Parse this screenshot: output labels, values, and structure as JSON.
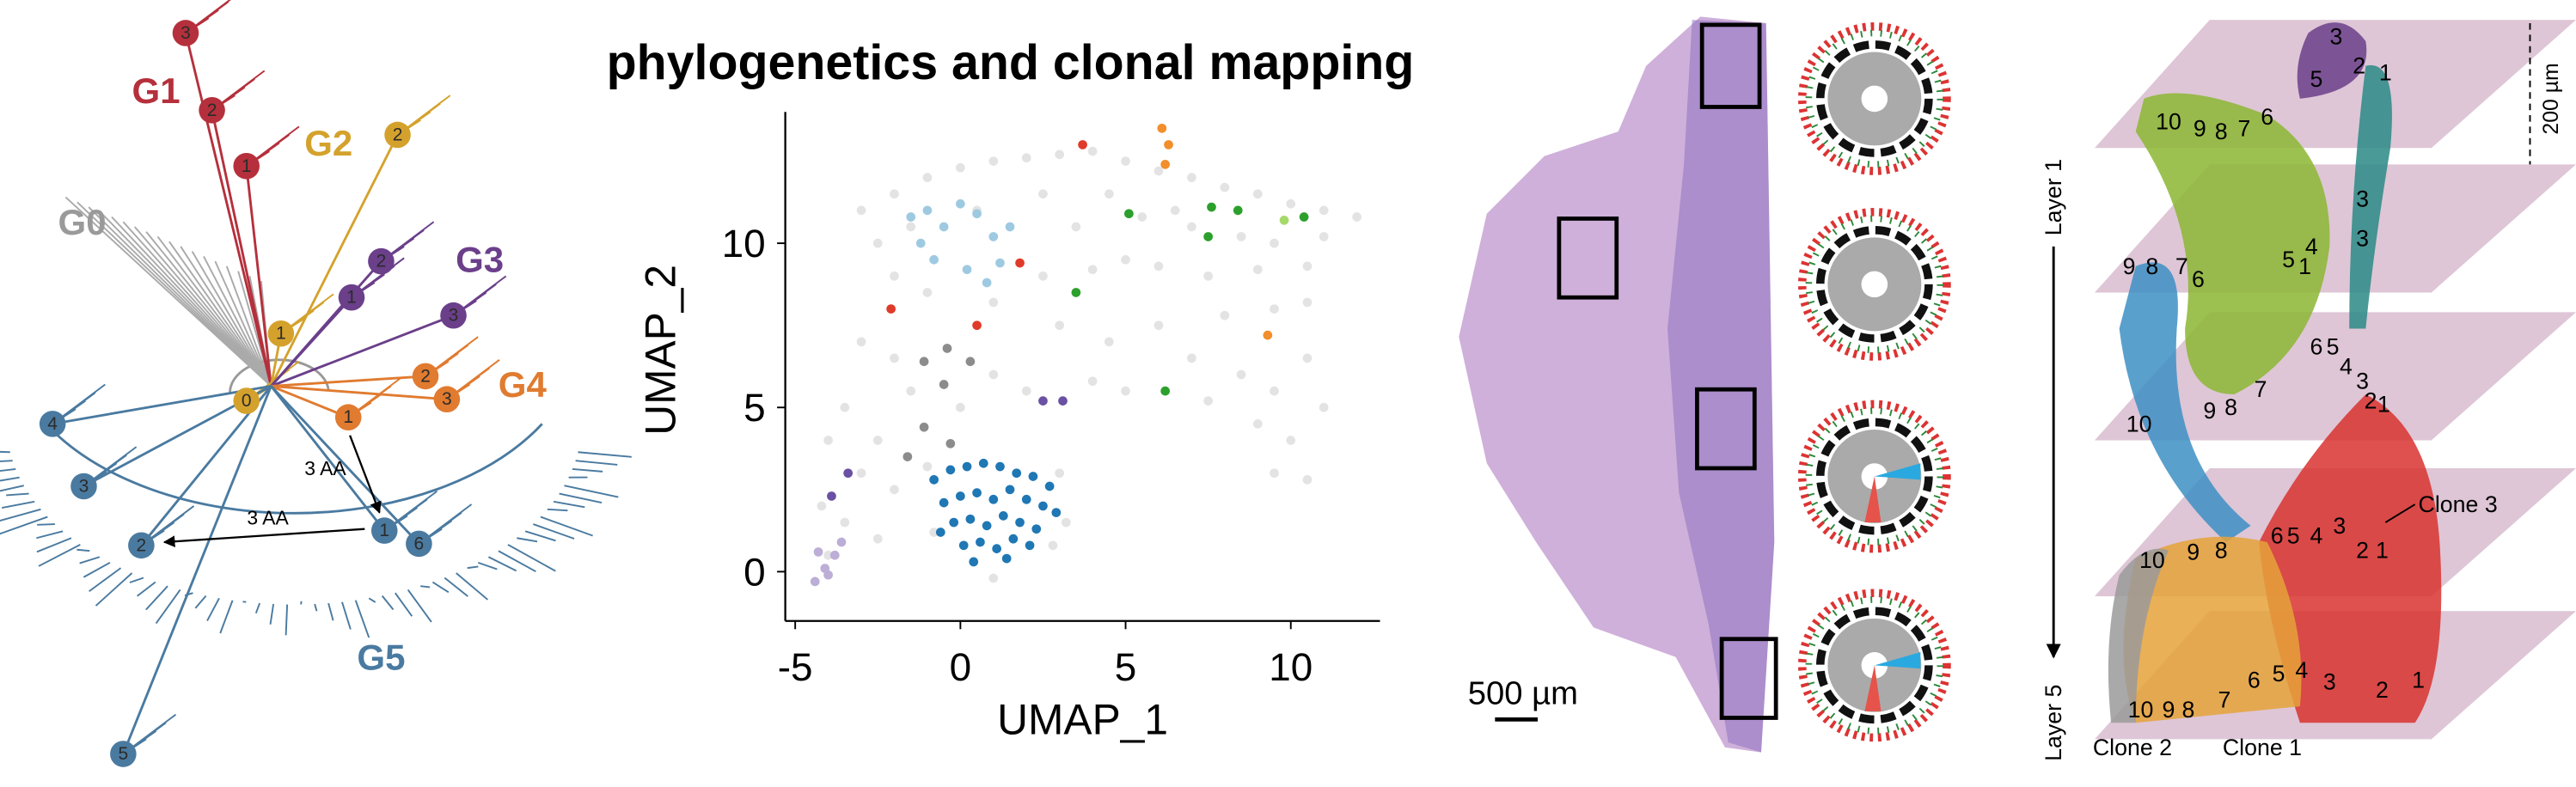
{
  "title": "phylogenetics and clonal mapping",
  "tree": {
    "groups": [
      "G0",
      "G1",
      "G2",
      "G3",
      "G4",
      "G5"
    ],
    "nodes": [
      "3",
      "2",
      "1",
      "2",
      "1",
      "0",
      "2",
      "1",
      "3",
      "2",
      "3",
      "1",
      "4",
      "3",
      "2",
      "1",
      "6",
      "5"
    ],
    "annotations": [
      "3 AA",
      "3 AA"
    ]
  },
  "chart_data": {
    "type": "scatter",
    "xlabel": "UMAP_1",
    "ylabel": "UMAP_2",
    "xlim": [
      -5.3,
      12.7
    ],
    "ylim": [
      -1.5,
      14
    ],
    "xticks": [
      -5,
      0,
      5,
      10
    ],
    "yticks": [
      0,
      5,
      10
    ],
    "series": [
      {
        "color": "#e3e3e3",
        "x": [
          -3,
          -2,
          -1,
          0,
          1,
          2,
          3,
          4,
          5,
          6,
          7,
          8,
          9,
          10,
          11,
          12,
          -2.5,
          -1.5,
          0.5,
          2.5,
          3.5,
          4.5,
          5.5,
          6.5,
          7,
          8.5,
          9.5,
          11,
          -2,
          -1,
          1,
          2.5,
          4,
          5,
          6,
          7.5,
          9,
          10.5,
          3,
          4.5,
          6,
          7,
          8,
          9.5,
          10.5,
          8.5,
          9.5,
          10.5,
          9,
          10,
          9.5,
          10.5,
          11,
          5,
          4,
          7.5,
          -3,
          -2,
          -1.5,
          -3.5,
          -4,
          -2.5,
          -3,
          -4.2,
          -3.5,
          -2.5,
          -4,
          0,
          1,
          2,
          -1,
          3,
          3.2,
          -0.8,
          2.8,
          1,
          -2
        ],
        "values": [
          11,
          11.5,
          12,
          12.3,
          12.5,
          12.6,
          12.7,
          12.8,
          12.5,
          12.2,
          12,
          11.7,
          11.5,
          11.2,
          11,
          10.8,
          10,
          10.5,
          11,
          11.5,
          10.5,
          11.5,
          10.8,
          11,
          10.5,
          10.2,
          10,
          10.2,
          9,
          8.5,
          8.2,
          9,
          9.2,
          9.5,
          9.3,
          9,
          9.2,
          9.3,
          7.5,
          7,
          7.5,
          6.5,
          7.8,
          8,
          8.2,
          6,
          5.5,
          6.5,
          4.5,
          4,
          3,
          2.8,
          5,
          5.5,
          5.8,
          5.2,
          7,
          6.5,
          5.5,
          5,
          4,
          4,
          3,
          2,
          1.5,
          1,
          0.5,
          5,
          6,
          5.5,
          3.2,
          3,
          1.5,
          1.2,
          0.8,
          -0.2,
          2.5
        ]
      },
      {
        "color": "#8c8c8c",
        "x": [
          -0.4,
          -1.1,
          -0.5,
          -1.1,
          -0.3,
          0.3,
          -1.6
        ],
        "values": [
          6.8,
          6.4,
          5.7,
          4.4,
          3.9,
          6.4,
          3.5
        ]
      },
      {
        "color": "#bcaed6",
        "x": [
          -4.4,
          -4.1,
          -3.8,
          -4.3,
          -3.6,
          -4.0
        ],
        "values": [
          -0.3,
          0.1,
          0.5,
          0.6,
          0.9,
          -0.1
        ]
      },
      {
        "color": "#9ecae1",
        "x": [
          -1.5,
          -1,
          -0.5,
          0,
          0.5,
          1,
          1.5,
          -0.8,
          0.2,
          1.2,
          -1.2,
          0.8
        ],
        "values": [
          10.8,
          11,
          10.5,
          11.2,
          10.9,
          10.2,
          10.5,
          9.5,
          9.2,
          9.4,
          10,
          8.8
        ]
      },
      {
        "color": "#1f77b4",
        "x": [
          -0.8,
          -0.3,
          0.2,
          0.7,
          1.2,
          1.7,
          2.2,
          2.7,
          -0.5,
          0,
          0.5,
          1,
          1.5,
          2,
          2.5,
          -0.2,
          0.3,
          0.8,
          1.3,
          1.8,
          2.3,
          0.1,
          0.6,
          1.1,
          1.6,
          2.1,
          -0.6,
          2.9,
          0.4,
          1.4
        ],
        "values": [
          2.8,
          3.1,
          3.2,
          3.3,
          3.2,
          3.0,
          2.9,
          2.6,
          2.1,
          2.3,
          2.4,
          2.2,
          2.5,
          2.2,
          2.0,
          1.5,
          1.6,
          1.4,
          1.7,
          1.5,
          1.3,
          0.8,
          0.9,
          0.7,
          1.0,
          0.8,
          1.2,
          1.8,
          0.3,
          0.4
        ]
      },
      {
        "color": "#e03b2a",
        "x": [
          1.8,
          -2.1,
          0.5,
          3.7
        ],
        "values": [
          9.4,
          8.0,
          7.5,
          13.0
        ]
      },
      {
        "color": "#f28e2b",
        "x": [
          6.1,
          6.3,
          6.2,
          9.3
        ],
        "values": [
          13.5,
          13.0,
          12.4,
          7.2
        ]
      },
      {
        "color": "#2ca02c",
        "x": [
          5.1,
          7.6,
          8.4,
          7.5,
          3.5,
          6.2,
          10.4
        ],
        "values": [
          10.9,
          11.1,
          11.0,
          10.2,
          8.5,
          5.5,
          10.8
        ]
      },
      {
        "color": "#a6d96a",
        "x": [
          9.8
        ],
        "values": [
          10.7
        ]
      },
      {
        "color": "#6a51a3",
        "x": [
          2.5,
          3.1,
          -3.4,
          -3.9
        ],
        "values": [
          5.2,
          5.2,
          3.0,
          2.3
        ]
      }
    ]
  },
  "histology": {
    "scale_bar": "500 µm"
  },
  "layers": {
    "labels": [
      "Layer 1",
      "Layer 5"
    ],
    "scale": "200 µm",
    "clones": [
      "Clone 3",
      "Clone 2",
      "Clone 1"
    ],
    "clone_numbers": [
      "3",
      "5",
      "2",
      "1",
      "10",
      "9",
      "8",
      "7",
      "6",
      "3",
      "3",
      "9",
      "8",
      "7",
      "6",
      "5",
      "4",
      "1",
      "6",
      "5",
      "4",
      "3",
      "10",
      "9",
      "8",
      "7",
      "2",
      "1",
      "10",
      "9",
      "8",
      "6",
      "5",
      "4",
      "3",
      "2",
      "1",
      "10",
      "9",
      "8",
      "7",
      "6",
      "5",
      "4",
      "3",
      "2",
      "1"
    ]
  }
}
